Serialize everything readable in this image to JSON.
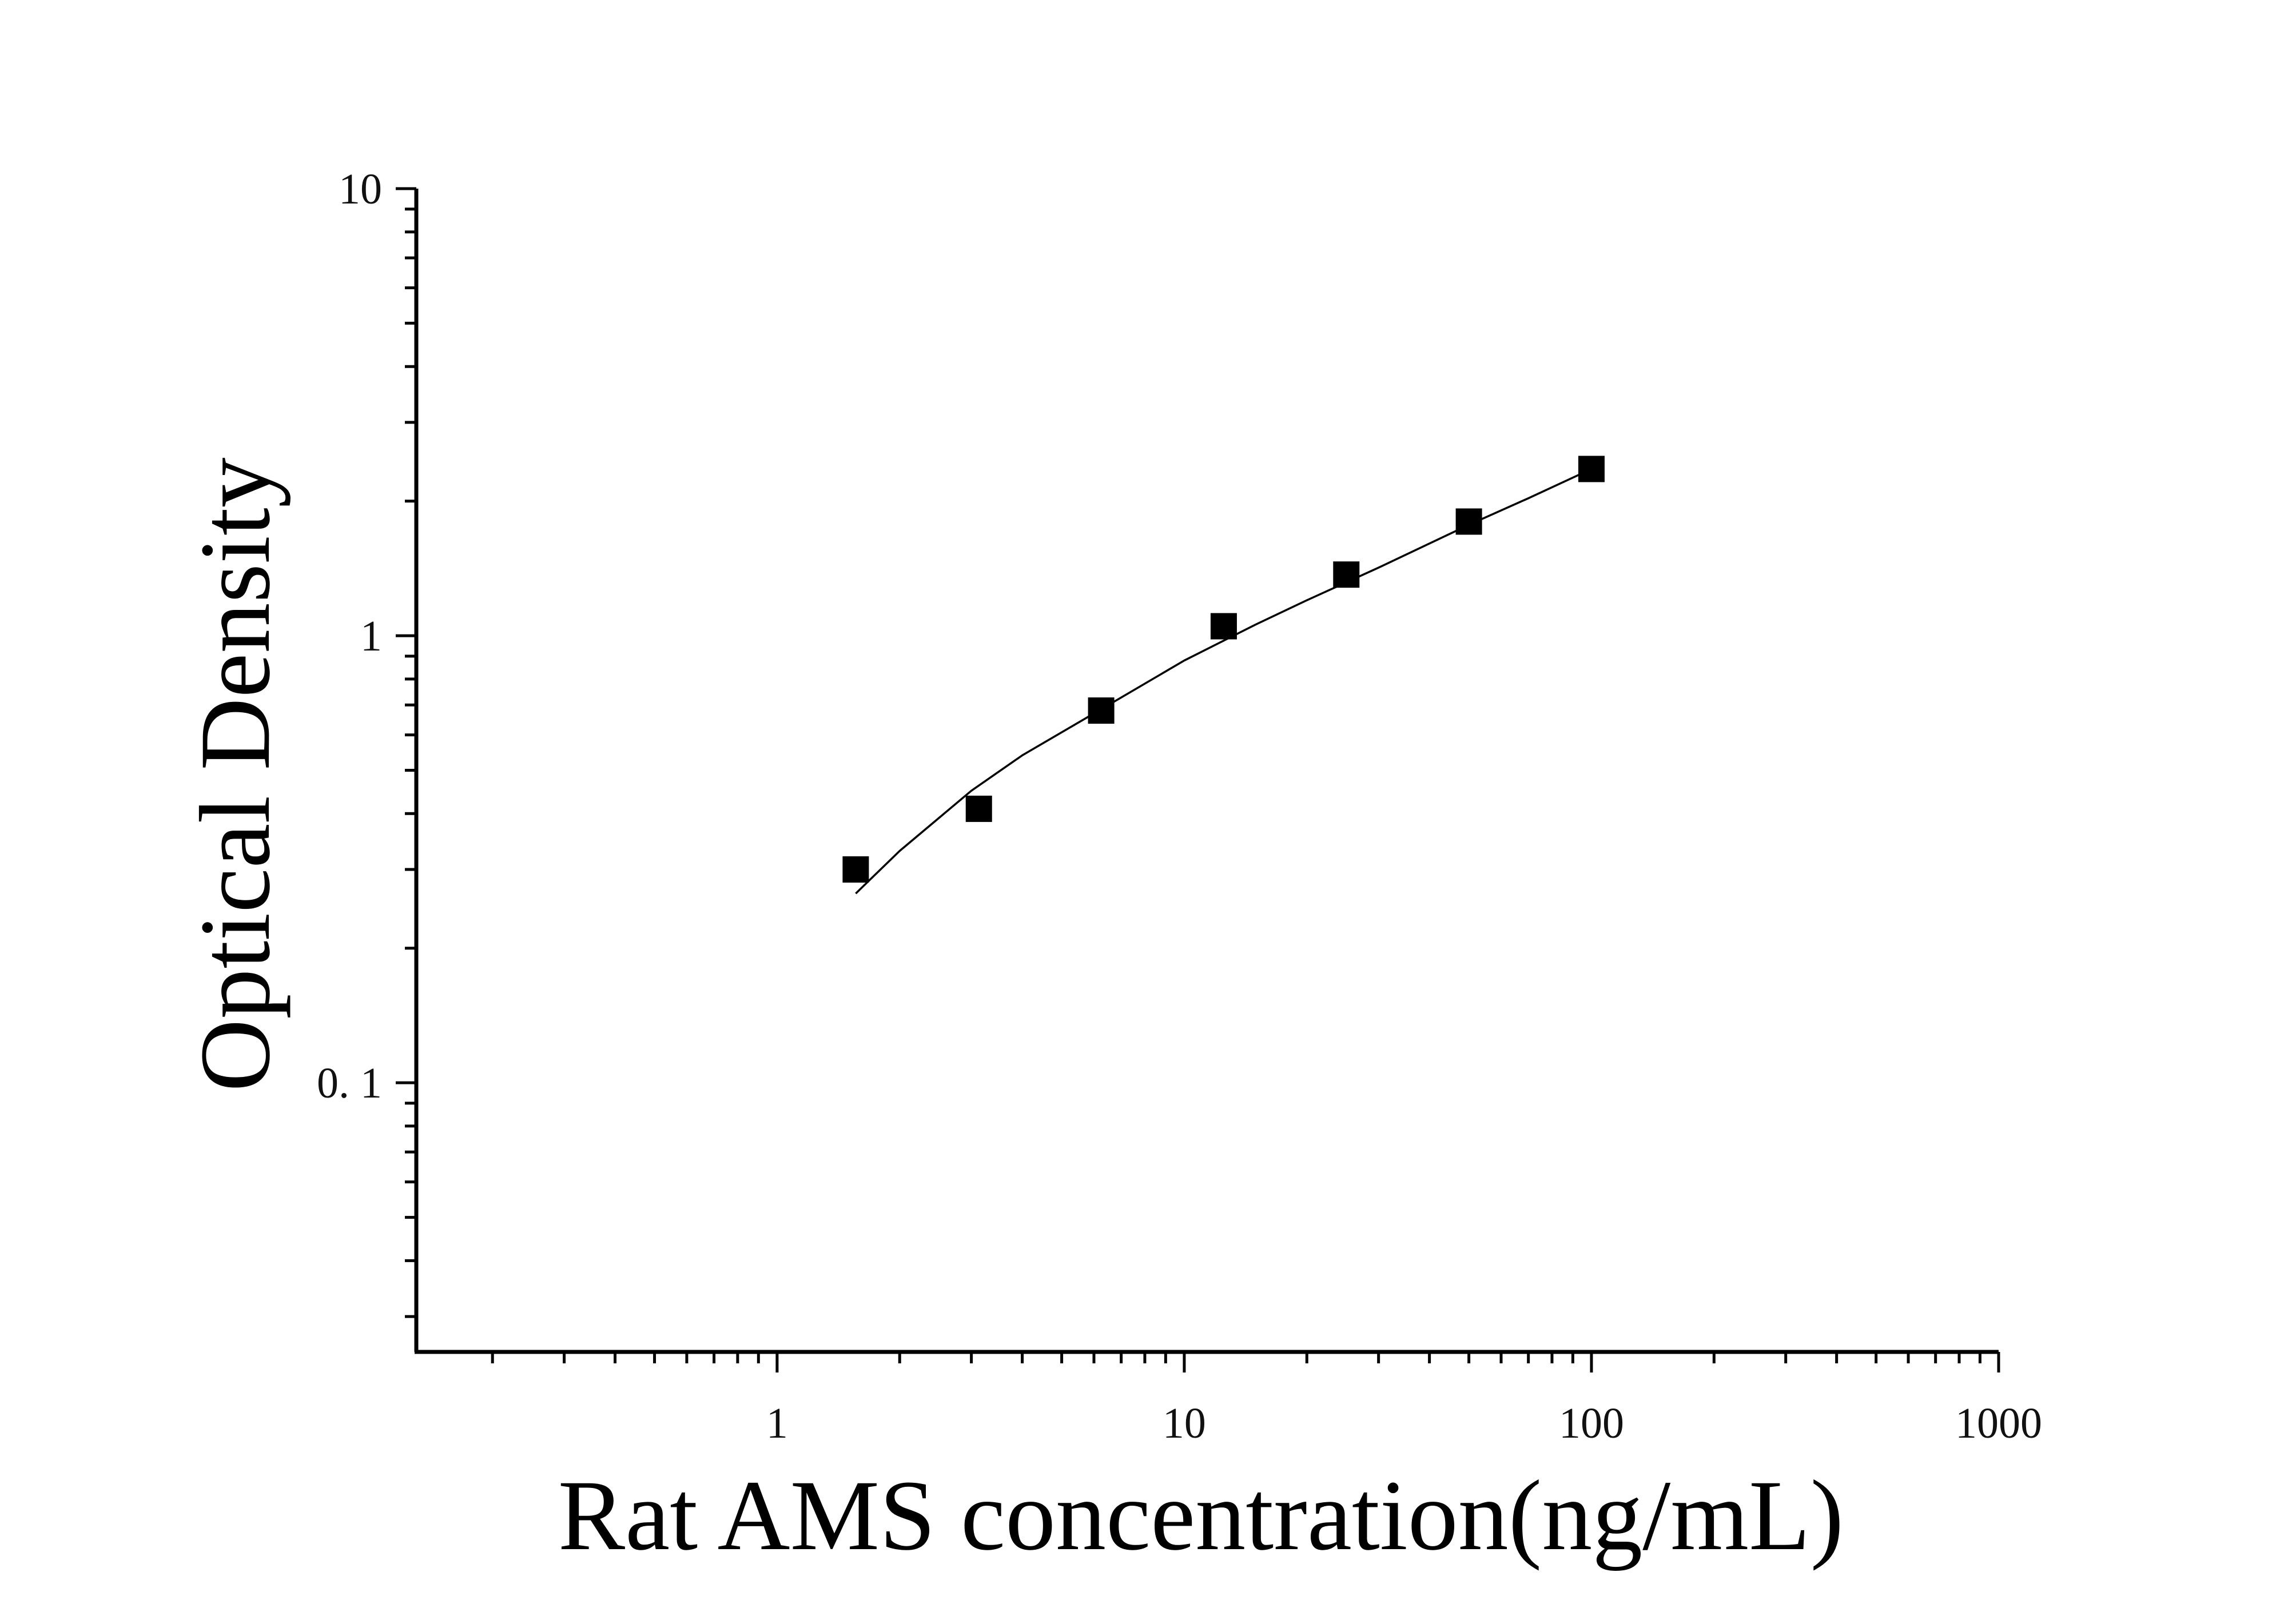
{
  "chart_data": {
    "type": "scatter",
    "title": "",
    "xlabel": "Rat AMS concentration(ng/mL)",
    "ylabel": "Optical Density",
    "x_scale": "log",
    "y_scale": "log",
    "xlim": [
      0.13,
      1000
    ],
    "ylim": [
      0.025,
      10
    ],
    "x_ticks": [
      {
        "value": 1,
        "label": "1"
      },
      {
        "value": 10,
        "label": "10"
      },
      {
        "value": 100,
        "label": "100"
      },
      {
        "value": 1000,
        "label": "1000"
      }
    ],
    "y_ticks": [
      {
        "value": 0.1,
        "label": "0. 1"
      },
      {
        "value": 1,
        "label": "1"
      },
      {
        "value": 10,
        "label": "10"
      }
    ],
    "grid": false,
    "legend": "none",
    "series": [
      {
        "type": "scatter",
        "marker": "square",
        "color": "#000000",
        "x": [
          1.56,
          3.13,
          6.25,
          12.5,
          25,
          50,
          100
        ],
        "y": [
          0.3,
          0.41,
          0.68,
          1.05,
          1.37,
          1.8,
          2.36
        ]
      },
      {
        "type": "line",
        "color": "#000000",
        "x": [
          1.56,
          2,
          3,
          4,
          6,
          10,
          15,
          20,
          30,
          50,
          70,
          100
        ],
        "y": [
          0.265,
          0.33,
          0.45,
          0.54,
          0.67,
          0.88,
          1.06,
          1.2,
          1.42,
          1.77,
          2.03,
          2.36
        ]
      }
    ]
  }
}
